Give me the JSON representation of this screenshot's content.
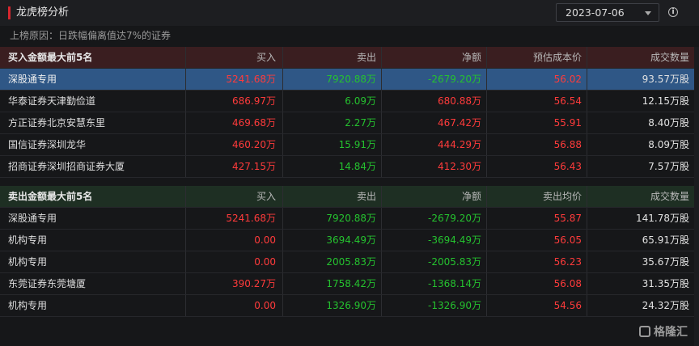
{
  "header": {
    "title": "龙虎榜分析",
    "date": "2023-07-06",
    "reason": "上榜原因：日跌幅偏离值达7%的证券"
  },
  "buy_table": {
    "columns": [
      "买入金额最大前5名",
      "买入",
      "卖出",
      "净额",
      "预估成本价",
      "成交数量"
    ],
    "rows": [
      {
        "name": "深股通专用",
        "buy": "5241.68万",
        "sell": "7920.88万",
        "net": "-2679.20万",
        "price": "56.02",
        "volume": "93.57万股"
      },
      {
        "name": "华泰证券天津勤俭道",
        "buy": "686.97万",
        "sell": "6.09万",
        "net": "680.88万",
        "price": "56.54",
        "volume": "12.15万股"
      },
      {
        "name": "方正证券北京安慧东里",
        "buy": "469.68万",
        "sell": "2.27万",
        "net": "467.42万",
        "price": "55.91",
        "volume": "8.40万股"
      },
      {
        "name": "国信证券深圳龙华",
        "buy": "460.20万",
        "sell": "15.91万",
        "net": "444.29万",
        "price": "56.88",
        "volume": "8.09万股"
      },
      {
        "name": "招商证券深圳招商证券大厦",
        "buy": "427.15万",
        "sell": "14.84万",
        "net": "412.30万",
        "price": "56.43",
        "volume": "7.57万股"
      }
    ]
  },
  "sell_table": {
    "columns": [
      "卖出金额最大前5名",
      "买入",
      "卖出",
      "净额",
      "卖出均价",
      "成交数量"
    ],
    "rows": [
      {
        "name": "深股通专用",
        "buy": "5241.68万",
        "sell": "7920.88万",
        "net": "-2679.20万",
        "price": "55.87",
        "volume": "141.78万股"
      },
      {
        "name": "机构专用",
        "buy": "0.00",
        "sell": "3694.49万",
        "net": "-3694.49万",
        "price": "56.05",
        "volume": "65.91万股"
      },
      {
        "name": "机构专用",
        "buy": "0.00",
        "sell": "2005.83万",
        "net": "-2005.83万",
        "price": "56.23",
        "volume": "35.67万股"
      },
      {
        "name": "东莞证券东莞塘厦",
        "buy": "390.27万",
        "sell": "1758.42万",
        "net": "-1368.14万",
        "price": "56.08",
        "volume": "31.35万股"
      },
      {
        "name": "机构专用",
        "buy": "0.00",
        "sell": "1326.90万",
        "net": "-1326.90万",
        "price": "54.56",
        "volume": "24.32万股"
      }
    ]
  },
  "watermark": "格隆汇",
  "colors": {
    "up": "#ff3b3b",
    "down": "#25c22f",
    "highlight": "#2f5786"
  }
}
